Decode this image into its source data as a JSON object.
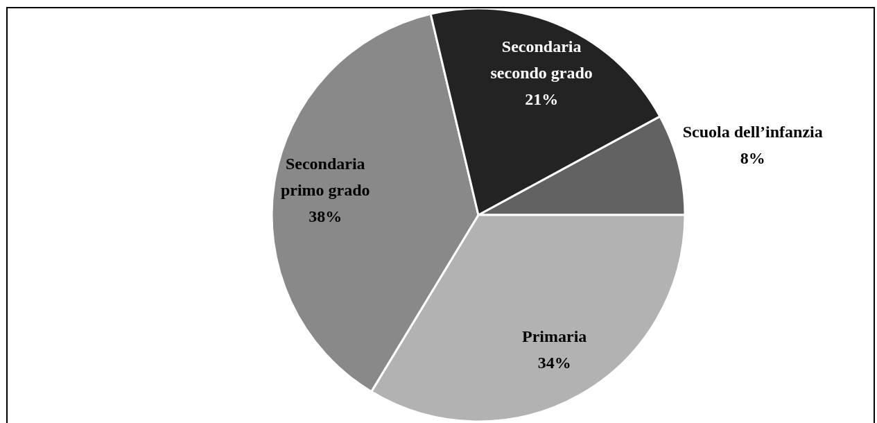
{
  "chart_data": {
    "type": "pie",
    "categories": [
      "Scuola dell’infanzia",
      "Primaria",
      "Secondaria primo grado",
      "Secondaria secondo grado"
    ],
    "values": [
      8,
      34,
      38,
      21
    ],
    "value_labels": [
      "8%",
      "34%",
      "38%",
      "21%"
    ],
    "colors": [
      "#626262",
      "#b2b2b2",
      "#898989",
      "#232323"
    ]
  }
}
